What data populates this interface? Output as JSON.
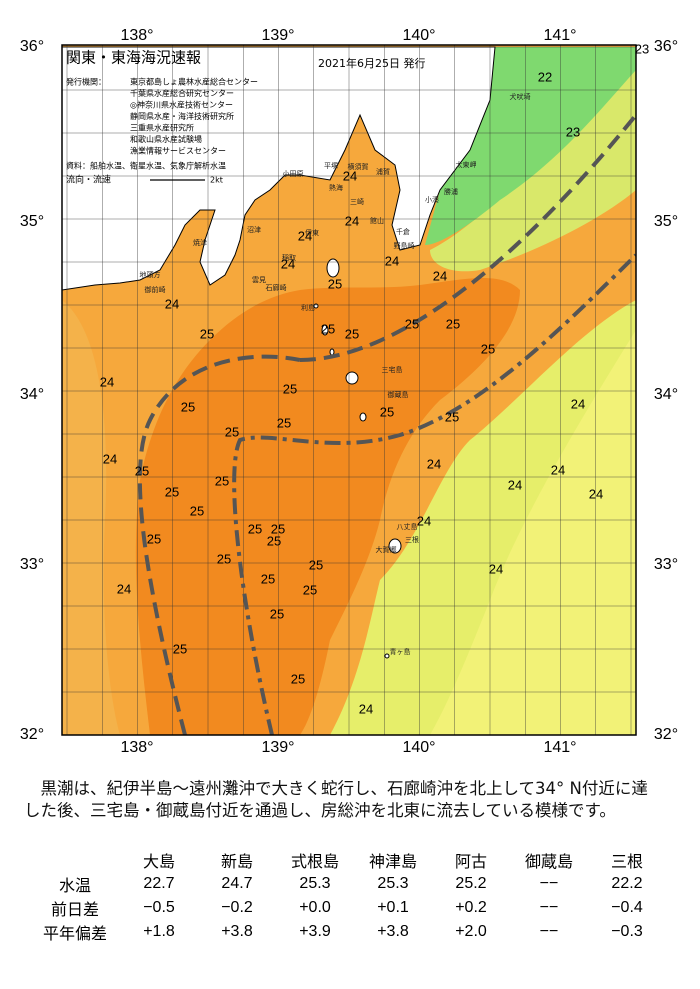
{
  "map": {
    "title": "関東・東海海況速報",
    "date": "2021年6月25日 発行",
    "issuer_label": "発行機関：",
    "issuers": [
      "東京都島しょ農林水産総合センター",
      "千葉県水産総合研究センター",
      "◎神奈川県水産技術センター",
      "静岡県水産・海洋技術研究所",
      "三重県水産研究所",
      "和歌山県水産試験場",
      "漁業情報サービスセンター"
    ],
    "source": "資料：船舶水温、衛星水温、気象庁解析水温",
    "current_label": "流向・流速",
    "current_scale": "2kt",
    "longitudes": [
      "138°",
      "139°",
      "140°",
      "141°"
    ],
    "latitudes": [
      "36°",
      "35°",
      "34°",
      "33°",
      "32°"
    ],
    "temperature_labels": [
      23,
      22,
      23,
      24,
      24,
      24,
      24,
      24,
      24,
      25,
      24,
      25,
      25,
      25,
      25,
      25,
      25,
      24,
      25,
      25,
      25,
      25,
      24,
      25,
      25,
      24,
      24,
      24,
      25,
      25,
      25,
      24,
      24,
      25,
      24,
      25,
      25,
      25,
      25,
      25,
      25,
      24,
      25,
      24,
      25,
      25,
      25,
      25,
      24
    ],
    "place_names": [
      "犬吠埼",
      "太東岬",
      "勝浦",
      "小湊",
      "千倉",
      "野島崎",
      "館山",
      "平塚",
      "横須賀",
      "浦賀",
      "三崎",
      "小田原",
      "熱海",
      "伊東",
      "稲取",
      "雲見",
      "石廊崎",
      "沼津",
      "焼津",
      "地頭方",
      "御前崎",
      "利島",
      "三宅島",
      "御蔵島",
      "八丈島",
      "三根",
      "大賀郷",
      "青ヶ島"
    ]
  },
  "description": "黒潮は、紀伊半島～遠州灘沖で大きく蛇行し、石廊崎沖を北上して34° N付近に達した後、三宅島・御蔵島付近を通過し、房総沖を北東に流去している模様です。",
  "table": {
    "columns": [
      "大島",
      "新島",
      "式根島",
      "神津島",
      "阿古",
      "御蔵島",
      "三根"
    ],
    "rows": [
      {
        "label": "水温",
        "values": [
          "22.7",
          "24.7",
          "25.3",
          "25.3",
          "25.2",
          "−−",
          "22.2"
        ]
      },
      {
        "label": "前日差",
        "values": [
          "−0.5",
          "−0.2",
          "+0.0",
          "+0.1",
          "+0.2",
          "−−",
          "−0.4"
        ]
      },
      {
        "label": "平年偏差",
        "values": [
          "+1.8",
          "+3.8",
          "+3.9",
          "+3.8",
          "+2.0",
          "−−",
          "−0.3"
        ]
      }
    ]
  }
}
